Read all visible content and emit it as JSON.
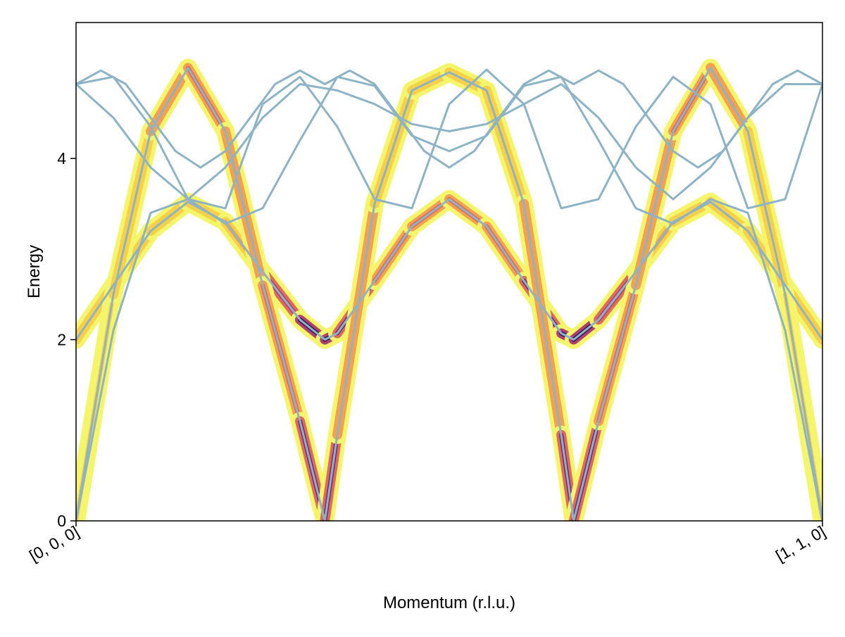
{
  "chart_data": {
    "type": "line",
    "title": "",
    "xlabel": "Momentum (r.l.u.)",
    "ylabel": "Energy",
    "xlim": [
      0,
      1
    ],
    "ylim": [
      0,
      5.5
    ],
    "x_ticks": [
      {
        "value": 0,
        "label": "[0, 0, 0]"
      },
      {
        "value": 1,
        "label": "[1, 1, 0]"
      }
    ],
    "y_ticks": [
      {
        "value": 0,
        "label": "0"
      },
      {
        "value": 2,
        "label": "2"
      },
      {
        "value": 4,
        "label": "4"
      }
    ],
    "grid": false,
    "dispersion_color": "#8cb3c6",
    "intensity_colormap": [
      "#f4f56a",
      "#f7d04a",
      "#f4a050",
      "#e06a5a",
      "#b23f6e",
      "#6e2a78",
      "#2d1a5c"
    ],
    "series": [
      {
        "x": [
          0,
          0.05,
          0.1,
          0.15,
          0.2,
          0.25,
          0.3,
          0.3333,
          0.35,
          0.4,
          0.45,
          0.5,
          0.55,
          0.6,
          0.65,
          0.6667,
          0.7,
          0.75,
          0.8,
          0.85,
          0.9,
          0.95,
          1.0
        ],
        "values": [
          2.0,
          2.6,
          3.2,
          3.52,
          3.3,
          2.75,
          2.22,
          2.0,
          2.07,
          2.65,
          3.25,
          3.55,
          3.25,
          2.65,
          2.07,
          2.0,
          2.22,
          2.75,
          3.3,
          3.52,
          3.2,
          2.6,
          2.0
        ],
        "intensity": [
          0.1,
          0.15,
          0.15,
          0.15,
          0.2,
          0.45,
          0.85,
          1.0,
          0.9,
          0.6,
          0.5,
          0.5,
          0.5,
          0.6,
          0.9,
          1.0,
          0.85,
          0.45,
          0.2,
          0.15,
          0.15,
          0.15,
          0.1
        ]
      },
      {
        "x": [
          0,
          0.05,
          0.1,
          0.15,
          0.2,
          0.25,
          0.3,
          0.3333,
          0.35,
          0.4,
          0.45,
          0.5,
          0.55,
          0.6,
          0.65,
          0.6667,
          0.7,
          0.75,
          0.8,
          0.85,
          0.9,
          0.95,
          1.0
        ],
        "values": [
          0,
          2.5,
          4.3,
          5.0,
          4.3,
          2.6,
          1.1,
          0,
          0.95,
          3.5,
          4.75,
          4.95,
          4.75,
          3.5,
          0.95,
          0,
          1.1,
          2.6,
          4.3,
          5.0,
          4.3,
          2.5,
          0
        ],
        "intensity": [
          0.1,
          0.1,
          0.35,
          0.45,
          0.4,
          0.4,
          0.6,
          1.0,
          0.6,
          0.15,
          0.15,
          0.15,
          0.15,
          0.15,
          0.6,
          1.0,
          0.6,
          0.4,
          0.4,
          0.45,
          0.35,
          0.1,
          0.1
        ]
      },
      {
        "x": [
          0,
          0.05,
          0.1,
          0.15,
          0.2,
          0.25,
          0.3,
          0.35,
          0.4,
          0.45,
          0.5,
          0.55,
          0.6,
          0.65,
          0.7,
          0.75,
          0.8,
          0.85,
          0.9,
          0.95,
          1.0
        ],
        "values": [
          0,
          2.1,
          3.4,
          3.55,
          3.28,
          3.45,
          4.2,
          4.9,
          4.8,
          4.25,
          4.08,
          4.25,
          4.8,
          4.9,
          4.2,
          3.45,
          3.28,
          3.55,
          3.4,
          2.1,
          0
        ]
      },
      {
        "x": [
          0,
          0.05,
          0.1,
          0.15,
          0.2,
          0.25,
          0.3,
          0.35,
          0.4,
          0.45,
          0.5,
          0.55,
          0.6,
          0.65,
          0.7,
          0.75,
          0.8,
          0.85,
          0.9,
          0.95,
          1.0
        ],
        "values": [
          4.82,
          4.45,
          3.9,
          3.55,
          3.9,
          4.45,
          4.82,
          4.75,
          4.6,
          4.38,
          4.3,
          4.38,
          4.6,
          4.82,
          4.45,
          3.9,
          3.55,
          3.9,
          4.45,
          4.82,
          4.82
        ]
      },
      {
        "x": [
          0,
          0.05,
          0.1,
          0.15,
          0.2,
          0.25,
          0.3,
          0.35,
          0.4,
          0.45,
          0.5,
          0.55,
          0.6,
          0.65,
          0.7,
          0.75,
          0.8,
          0.85,
          0.9,
          0.95,
          1.0
        ],
        "values": [
          4.82,
          4.9,
          4.35,
          3.55,
          3.45,
          4.6,
          4.9,
          4.35,
          3.55,
          3.45,
          4.6,
          4.98,
          4.6,
          3.45,
          3.55,
          4.35,
          4.9,
          4.6,
          3.45,
          3.55,
          4.82
        ]
      },
      {
        "x": [
          0,
          0.0333,
          0.0667,
          0.1,
          0.1333,
          0.1667,
          0.2,
          0.2333,
          0.2667,
          0.3,
          0.3333,
          0.3667,
          0.4,
          0.4333,
          0.4667,
          0.5,
          0.5333,
          0.5667,
          0.6,
          0.6333,
          0.6667,
          0.7,
          0.7333,
          0.7667,
          0.8,
          0.8333,
          0.8667,
          0.9,
          0.9333,
          0.9667,
          1.0
        ],
        "values": [
          4.82,
          4.97,
          4.82,
          4.45,
          4.08,
          3.9,
          4.08,
          4.45,
          4.82,
          4.97,
          4.82,
          4.97,
          4.82,
          4.45,
          4.08,
          3.9,
          4.08,
          4.45,
          4.82,
          4.97,
          4.82,
          4.97,
          4.82,
          4.45,
          4.08,
          3.9,
          4.08,
          4.45,
          4.82,
          4.97,
          4.82
        ]
      }
    ]
  }
}
